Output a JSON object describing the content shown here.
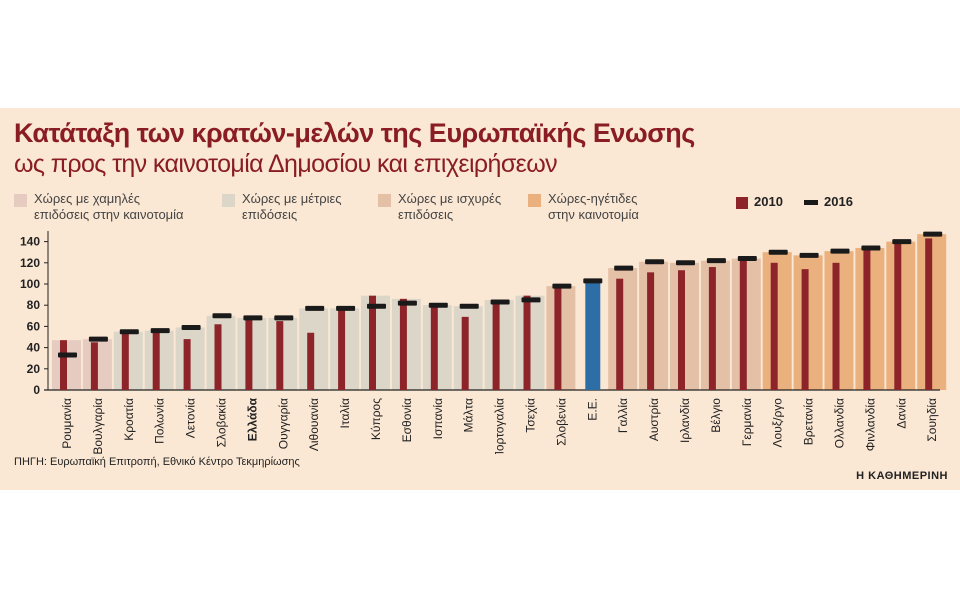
{
  "title": "Κατάταξη των κρατών-μελών της Ευρωπαϊκής Ενωσης",
  "subtitle": "ως προς την καινοτομία Δημοσίου και επιχειρήσεων",
  "legend": {
    "groups": [
      {
        "label": "Χώρες με χαμηλές\nεπιδόσεις στην καινοτομία",
        "color": "#e6cbc1"
      },
      {
        "label": "Χώρες με μέτριες\nεπιδόσεις",
        "color": "#dcd6c8"
      },
      {
        "label": "Χώρες με ισχυρές\nεπιδόσεις",
        "color": "#e4c0a6"
      },
      {
        "label": "Χώρες-ηγέτιδες\nστην καινοτομία",
        "color": "#eab07d"
      }
    ],
    "year_2010": "2010",
    "year_2016": "2016"
  },
  "colors": {
    "bar_2010": "#8d2429",
    "marker_2016": "#1a1a1a",
    "eu_bar": "#2e6ea6"
  },
  "source": "ΠΗΓΗ: Ευρωπαϊκή Επιτροπή, Εθνικό Κέντρο Τεκμηρίωσης",
  "brand": "Η ΚΑΘΗΜΕΡΙΝΗ",
  "chart_data": {
    "type": "bar",
    "ylim": [
      0,
      150
    ],
    "yticks": [
      0,
      20,
      40,
      60,
      80,
      100,
      120,
      140
    ],
    "categories": [
      "Ρουμανία",
      "Βουλγαρία",
      "Κροατία",
      "Πολωνία",
      "Λετονία",
      "Σλοβακία",
      "Ελλάδα",
      "Ουγγαρία",
      "Λιθουανία",
      "Ιταλία",
      "Κύπρος",
      "Εσθονία",
      "Ισπανία",
      "Μάλτα",
      "Πορτογαλία",
      "Τσεχία",
      "Σλοβενία",
      "Ε.Ε.",
      "Γαλλία",
      "Αυστρία",
      "Ιρλανδία",
      "Βέλγιο",
      "Γερμανία",
      "Λουξ/ργο",
      "Βρετανία",
      "Ολλανδία",
      "Φινλανδία",
      "Δανία",
      "Σουηδία"
    ],
    "highlight": "Ελλάδα",
    "groups": [
      "low",
      "low",
      "moderate",
      "moderate",
      "moderate",
      "moderate",
      "moderate",
      "moderate",
      "moderate",
      "moderate",
      "moderate",
      "moderate",
      "moderate",
      "moderate",
      "moderate",
      "moderate",
      "strong",
      "eu",
      "strong",
      "strong",
      "strong",
      "strong",
      "strong",
      "leader",
      "leader",
      "leader",
      "leader",
      "leader",
      "leader"
    ],
    "series": [
      {
        "name": "2010",
        "values": [
          47,
          45,
          54,
          54,
          48,
          62,
          67,
          65,
          54,
          76,
          89,
          86,
          78,
          69,
          85,
          89,
          96,
          100,
          105,
          111,
          113,
          116,
          122,
          120,
          114,
          120,
          132,
          138,
          143
        ]
      },
      {
        "name": "2016",
        "values": [
          33,
          48,
          55,
          56,
          59,
          70,
          68,
          68,
          77,
          77,
          79,
          82,
          80,
          79,
          83,
          85,
          98,
          103,
          115,
          121,
          120,
          122,
          124,
          130,
          127,
          131,
          134,
          140,
          147
        ]
      }
    ]
  }
}
